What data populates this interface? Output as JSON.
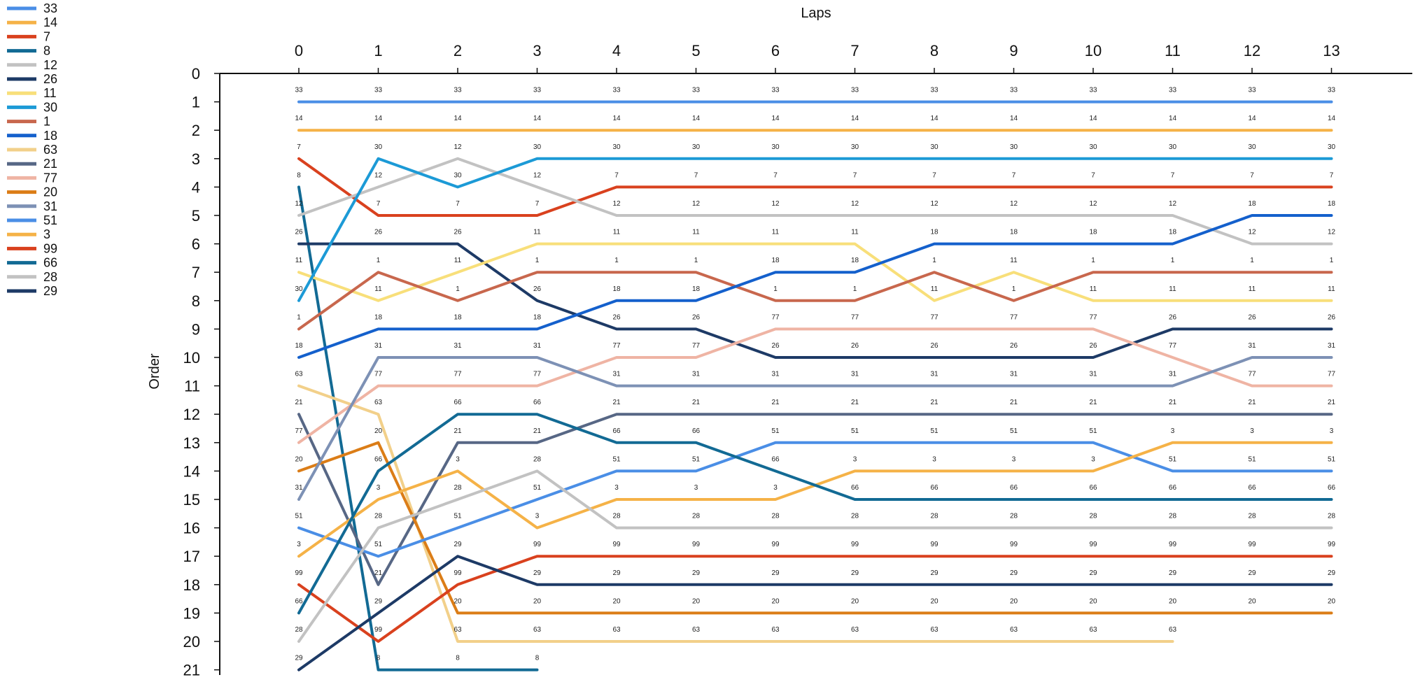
{
  "chart_data": {
    "type": "line",
    "xlabel": "Laps",
    "ylabel": "Order",
    "x_ticks": [
      0,
      1,
      2,
      3,
      4,
      5,
      6,
      7,
      8,
      9,
      10,
      11,
      12,
      13
    ],
    "y_ticks": [
      0,
      1,
      2,
      3,
      4,
      5,
      6,
      7,
      8,
      9,
      10,
      11,
      12,
      13,
      14,
      15,
      16,
      17,
      18,
      19,
      20,
      21
    ],
    "xlim": [
      0,
      13
    ],
    "ylim": [
      0,
      21
    ],
    "y_inverted": true,
    "x_axis_position": "top",
    "grid": false,
    "legend_position": "left",
    "series": [
      {
        "name": "33",
        "color": "#4a8ee6",
        "values": [
          1,
          1,
          1,
          1,
          1,
          1,
          1,
          1,
          1,
          1,
          1,
          1,
          1,
          1
        ]
      },
      {
        "name": "14",
        "color": "#f5b247",
        "values": [
          2,
          2,
          2,
          2,
          2,
          2,
          2,
          2,
          2,
          2,
          2,
          2,
          2,
          2
        ]
      },
      {
        "name": "7",
        "color": "#d9411e",
        "values": [
          3,
          5,
          5,
          5,
          4,
          4,
          4,
          4,
          4,
          4,
          4,
          4,
          4,
          4
        ]
      },
      {
        "name": "8",
        "color": "#126a94",
        "values": [
          4,
          21,
          21,
          21
        ]
      },
      {
        "name": "12",
        "color": "#c2c2c2",
        "values": [
          5,
          4,
          3,
          4,
          5,
          5,
          5,
          5,
          5,
          5,
          5,
          5,
          6,
          6
        ]
      },
      {
        "name": "26",
        "color": "#1d3a66",
        "values": [
          6,
          6,
          6,
          8,
          9,
          9,
          10,
          10,
          10,
          10,
          10,
          9,
          9,
          9
        ]
      },
      {
        "name": "11",
        "color": "#f8df7a",
        "values": [
          7,
          8,
          7,
          6,
          6,
          6,
          6,
          6,
          8,
          7,
          8,
          8,
          8,
          8
        ]
      },
      {
        "name": "30",
        "color": "#1c9ad6",
        "values": [
          8,
          3,
          4,
          3,
          3,
          3,
          3,
          3,
          3,
          3,
          3,
          3,
          3,
          3
        ]
      },
      {
        "name": "1",
        "color": "#c8674d",
        "values": [
          9,
          7,
          8,
          7,
          7,
          7,
          8,
          8,
          7,
          8,
          7,
          7,
          7,
          7
        ]
      },
      {
        "name": "18",
        "color": "#1460cc",
        "values": [
          10,
          9,
          9,
          9,
          8,
          8,
          7,
          7,
          6,
          6,
          6,
          6,
          5,
          5
        ]
      },
      {
        "name": "63",
        "color": "#f2d08a",
        "values": [
          11,
          12,
          20,
          20,
          20,
          20,
          20,
          20,
          20,
          20,
          20,
          20
        ]
      },
      {
        "name": "21",
        "color": "#576785",
        "values": [
          12,
          18,
          13,
          13,
          12,
          12,
          12,
          12,
          12,
          12,
          12,
          12,
          12,
          12
        ]
      },
      {
        "name": "77",
        "color": "#efb4a4",
        "values": [
          13,
          11,
          11,
          11,
          10,
          10,
          9,
          9,
          9,
          9,
          9,
          10,
          11,
          11
        ]
      },
      {
        "name": "20",
        "color": "#db7d17",
        "values": [
          14,
          13,
          19,
          19,
          19,
          19,
          19,
          19,
          19,
          19,
          19,
          19,
          19,
          19
        ]
      },
      {
        "name": "31",
        "color": "#7d91b5",
        "values": [
          15,
          10,
          10,
          10,
          11,
          11,
          11,
          11,
          11,
          11,
          11,
          11,
          10,
          10
        ]
      },
      {
        "name": "51",
        "color": "#4a8ee6",
        "values": [
          16,
          17,
          16,
          15,
          14,
          14,
          13,
          13,
          13,
          13,
          13,
          14,
          14,
          14
        ]
      },
      {
        "name": "3",
        "color": "#f5b247",
        "values": [
          17,
          15,
          14,
          16,
          15,
          15,
          15,
          14,
          14,
          14,
          14,
          13,
          13,
          13
        ]
      },
      {
        "name": "99",
        "color": "#d9411e",
        "values": [
          18,
          20,
          18,
          17,
          17,
          17,
          17,
          17,
          17,
          17,
          17,
          17,
          17,
          17
        ]
      },
      {
        "name": "66",
        "color": "#126a94",
        "values": [
          19,
          14,
          12,
          12,
          13,
          13,
          14,
          15,
          15,
          15,
          15,
          15,
          15,
          15
        ]
      },
      {
        "name": "28",
        "color": "#c2c2c2",
        "values": [
          20,
          16,
          15,
          14,
          16,
          16,
          16,
          16,
          16,
          16,
          16,
          16,
          16,
          16
        ]
      },
      {
        "name": "29",
        "color": "#1d3a66",
        "values": [
          21,
          19,
          17,
          18,
          18,
          18,
          18,
          18,
          18,
          18,
          18,
          18,
          18,
          18
        ]
      }
    ]
  }
}
